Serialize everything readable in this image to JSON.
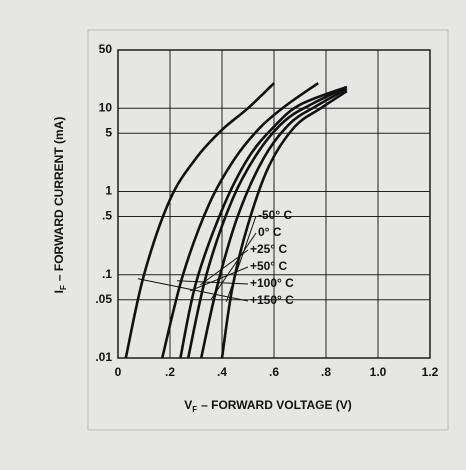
{
  "chart_data": {
    "type": "line",
    "x_label": {
      "symbol": "V",
      "subscript": "F",
      "text": "– FORWARD VOLTAGE (V)"
    },
    "y_label": {
      "symbol": "I",
      "subscript": "F",
      "text": "– FORWARD CURRENT (mA)"
    },
    "xlim": [
      0,
      1.2
    ],
    "xticks": [
      0,
      {
        "value": 0.2,
        "label": ".2"
      },
      {
        "value": 0.4,
        "label": ".4"
      },
      {
        "value": 0.6,
        "label": ".6"
      },
      {
        "value": 0.8,
        "label": ".8"
      },
      {
        "value": 1.0,
        "label": "1.0"
      },
      {
        "value": 1.2,
        "label": "1.2"
      }
    ],
    "ylim": [
      0.01,
      50
    ],
    "log_y": true,
    "yticks": [
      {
        "value": 0.01,
        "label": ".01"
      },
      {
        "value": 0.05,
        "label": ".05"
      },
      {
        "value": 0.1,
        "label": ".1"
      },
      {
        "value": 0.5,
        "label": ".5"
      },
      1,
      5,
      10,
      50
    ],
    "grid": true,
    "color": "#111111",
    "series": [
      {
        "name": "-50° C",
        "x": [
          0.4,
          0.44,
          0.5,
          0.58,
          0.68,
          0.78,
          0.88
        ],
        "values": [
          0.01,
          0.07,
          0.4,
          2,
          6,
          10,
          16
        ]
      },
      {
        "name": "0° C",
        "x": [
          0.32,
          0.38,
          0.46,
          0.56,
          0.66,
          0.76,
          0.88
        ],
        "values": [
          0.01,
          0.07,
          0.5,
          2.5,
          6.5,
          10.5,
          17
        ]
      },
      {
        "name": "+25° C",
        "x": [
          0.27,
          0.34,
          0.44,
          0.54,
          0.64,
          0.74,
          0.88
        ],
        "values": [
          0.01,
          0.1,
          0.8,
          3,
          7,
          11,
          18
        ]
      },
      {
        "name": "+50° C",
        "x": [
          0.24,
          0.3,
          0.4,
          0.5,
          0.6,
          0.7,
          0.88
        ],
        "values": [
          0.01,
          0.08,
          0.6,
          2.5,
          6,
          11,
          18
        ]
      },
      {
        "name": "+100° C",
        "x": [
          0.17,
          0.25,
          0.35,
          0.45,
          0.55,
          0.65,
          0.77
        ],
        "values": [
          0.01,
          0.1,
          0.7,
          2.5,
          6,
          11,
          20
        ]
      },
      {
        "name": "+150° C",
        "x": [
          0.03,
          0.1,
          0.2,
          0.3,
          0.4,
          0.5,
          0.6
        ],
        "values": [
          0.01,
          0.1,
          0.8,
          2.5,
          5.5,
          10,
          20
        ]
      }
    ]
  }
}
